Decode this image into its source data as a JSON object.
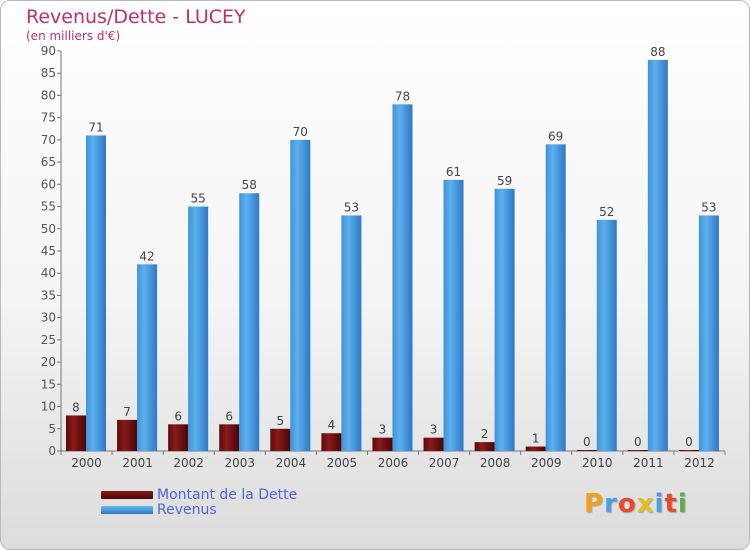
{
  "title": "Revenus/Dette - LUCEY",
  "subtitle": "(en milliers d'€)",
  "legend": [
    {
      "label": "Montant de la Dette",
      "color": "#6b0f0f"
    },
    {
      "label": "Revenus",
      "color": "#4aa3e6"
    }
  ],
  "logo": {
    "text": "Proxiti",
    "colors": [
      "#f0a020",
      "#4a9de0",
      "#e54b2c",
      "#e0c020",
      "#4a9de0",
      "#e54b2c",
      "#5ab04a"
    ]
  },
  "chart_data": {
    "type": "bar",
    "title": "Revenus/Dette - LUCEY",
    "subtitle": "(en milliers d'€)",
    "categories": [
      "2000",
      "2001",
      "2002",
      "2003",
      "2004",
      "2005",
      "2006",
      "2007",
      "2008",
      "2009",
      "2010",
      "2011",
      "2012"
    ],
    "series": [
      {
        "name": "Montant de la Dette",
        "color": "#6b0f0f",
        "values": [
          8,
          7,
          6,
          6,
          5,
          4,
          3,
          3,
          2,
          1,
          0,
          0,
          0
        ]
      },
      {
        "name": "Revenus",
        "color": "#4aa3e6",
        "values": [
          71,
          42,
          55,
          58,
          70,
          53,
          78,
          61,
          59,
          69,
          52,
          88,
          53
        ]
      }
    ],
    "ylim": [
      0,
      90
    ],
    "yticks": [
      0,
      5,
      10,
      15,
      20,
      25,
      30,
      35,
      40,
      45,
      50,
      55,
      60,
      65,
      70,
      75,
      80,
      85,
      90
    ],
    "grid": false,
    "legend_position": "bottom-left"
  }
}
